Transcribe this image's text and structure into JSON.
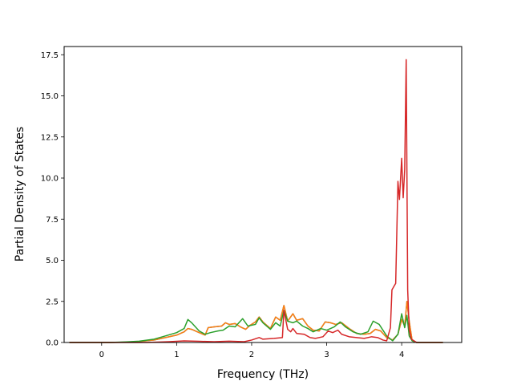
{
  "chart_data": {
    "type": "line",
    "title": "",
    "xlabel": "Frequency (THz)",
    "ylabel": "Partial Density of States",
    "xlim": [
      -0.5,
      4.8
    ],
    "ylim": [
      0,
      18
    ],
    "xticks": [
      0,
      1,
      2,
      3,
      4
    ],
    "yticks": [
      0.0,
      2.5,
      5.0,
      7.5,
      10.0,
      12.5,
      15.0,
      17.5
    ],
    "xtick_labels": [
      "0",
      "1",
      "2",
      "3",
      "4"
    ],
    "ytick_labels": [
      "0.0",
      "2.5",
      "5.0",
      "7.5",
      "10.0",
      "12.5",
      "15.0",
      "17.5"
    ],
    "grid": false,
    "series": [
      {
        "color": "#1f77b4",
        "points": [
          [
            -0.43,
            0
          ],
          [
            0.1,
            0
          ],
          [
            0.3,
            0.02
          ],
          [
            0.5,
            0.06
          ],
          [
            0.7,
            0.15
          ],
          [
            0.85,
            0.3
          ],
          [
            1.0,
            0.45
          ],
          [
            1.1,
            0.65
          ],
          [
            1.15,
            0.85
          ],
          [
            1.2,
            0.8
          ],
          [
            1.3,
            0.6
          ],
          [
            1.38,
            0.45
          ],
          [
            1.42,
            0.9
          ],
          [
            1.5,
            0.95
          ],
          [
            1.6,
            1.0
          ],
          [
            1.65,
            1.2
          ],
          [
            1.7,
            1.1
          ],
          [
            1.78,
            1.15
          ],
          [
            1.85,
            0.95
          ],
          [
            1.92,
            0.8
          ],
          [
            1.98,
            1.05
          ],
          [
            2.05,
            1.25
          ],
          [
            2.1,
            1.55
          ],
          [
            2.15,
            1.25
          ],
          [
            2.25,
            0.85
          ],
          [
            2.32,
            1.55
          ],
          [
            2.38,
            1.35
          ],
          [
            2.43,
            2.25
          ],
          [
            2.48,
            1.3
          ],
          [
            2.55,
            1.75
          ],
          [
            2.6,
            1.35
          ],
          [
            2.68,
            1.45
          ],
          [
            2.75,
            1.0
          ],
          [
            2.82,
            0.75
          ],
          [
            2.9,
            0.7
          ],
          [
            2.98,
            1.25
          ],
          [
            3.05,
            1.2
          ],
          [
            3.12,
            1.1
          ],
          [
            3.2,
            1.2
          ],
          [
            3.3,
            0.85
          ],
          [
            3.4,
            0.55
          ],
          [
            3.5,
            0.5
          ],
          [
            3.58,
            0.55
          ],
          [
            3.65,
            0.8
          ],
          [
            3.72,
            0.7
          ],
          [
            3.8,
            0.3
          ],
          [
            3.88,
            0.15
          ],
          [
            3.95,
            0.5
          ],
          [
            4.0,
            1.4
          ],
          [
            4.04,
            1.0
          ],
          [
            4.07,
            2.5
          ],
          [
            4.1,
            1.3
          ],
          [
            4.14,
            0.1
          ],
          [
            4.2,
            0
          ],
          [
            4.55,
            0
          ]
        ]
      },
      {
        "color": "#ff7f0e",
        "points": [
          [
            -0.43,
            0
          ],
          [
            0.1,
            0
          ],
          [
            0.3,
            0.02
          ],
          [
            0.5,
            0.06
          ],
          [
            0.7,
            0.15
          ],
          [
            0.85,
            0.3
          ],
          [
            1.0,
            0.45
          ],
          [
            1.1,
            0.65
          ],
          [
            1.15,
            0.85
          ],
          [
            1.2,
            0.8
          ],
          [
            1.3,
            0.6
          ],
          [
            1.38,
            0.45
          ],
          [
            1.42,
            0.9
          ],
          [
            1.5,
            0.95
          ],
          [
            1.6,
            1.0
          ],
          [
            1.65,
            1.2
          ],
          [
            1.7,
            1.1
          ],
          [
            1.78,
            1.15
          ],
          [
            1.85,
            0.95
          ],
          [
            1.92,
            0.8
          ],
          [
            1.98,
            1.05
          ],
          [
            2.05,
            1.25
          ],
          [
            2.1,
            1.55
          ],
          [
            2.15,
            1.25
          ],
          [
            2.25,
            0.85
          ],
          [
            2.32,
            1.55
          ],
          [
            2.38,
            1.35
          ],
          [
            2.43,
            2.25
          ],
          [
            2.48,
            1.3
          ],
          [
            2.55,
            1.75
          ],
          [
            2.6,
            1.35
          ],
          [
            2.68,
            1.45
          ],
          [
            2.75,
            1.0
          ],
          [
            2.82,
            0.75
          ],
          [
            2.9,
            0.7
          ],
          [
            2.98,
            1.25
          ],
          [
            3.05,
            1.2
          ],
          [
            3.12,
            1.1
          ],
          [
            3.2,
            1.2
          ],
          [
            3.3,
            0.85
          ],
          [
            3.4,
            0.55
          ],
          [
            3.5,
            0.5
          ],
          [
            3.58,
            0.55
          ],
          [
            3.65,
            0.8
          ],
          [
            3.72,
            0.7
          ],
          [
            3.8,
            0.3
          ],
          [
            3.88,
            0.15
          ],
          [
            3.95,
            0.5
          ],
          [
            4.0,
            1.4
          ],
          [
            4.04,
            1.0
          ],
          [
            4.07,
            2.5
          ],
          [
            4.1,
            1.3
          ],
          [
            4.14,
            0.1
          ],
          [
            4.2,
            0
          ],
          [
            4.55,
            0
          ]
        ]
      },
      {
        "color": "#2ca02c",
        "points": [
          [
            -0.43,
            0
          ],
          [
            0.1,
            0
          ],
          [
            0.3,
            0.03
          ],
          [
            0.5,
            0.08
          ],
          [
            0.7,
            0.2
          ],
          [
            0.85,
            0.4
          ],
          [
            1.0,
            0.6
          ],
          [
            1.1,
            0.85
          ],
          [
            1.15,
            1.4
          ],
          [
            1.2,
            1.2
          ],
          [
            1.3,
            0.7
          ],
          [
            1.38,
            0.5
          ],
          [
            1.45,
            0.6
          ],
          [
            1.55,
            0.7
          ],
          [
            1.62,
            0.75
          ],
          [
            1.7,
            1.0
          ],
          [
            1.78,
            0.95
          ],
          [
            1.88,
            1.45
          ],
          [
            1.95,
            1.0
          ],
          [
            2.05,
            1.1
          ],
          [
            2.1,
            1.5
          ],
          [
            2.15,
            1.2
          ],
          [
            2.25,
            0.8
          ],
          [
            2.32,
            1.2
          ],
          [
            2.38,
            1.0
          ],
          [
            2.43,
            1.95
          ],
          [
            2.48,
            1.3
          ],
          [
            2.55,
            1.2
          ],
          [
            2.6,
            1.3
          ],
          [
            2.68,
            1.0
          ],
          [
            2.75,
            0.85
          ],
          [
            2.82,
            0.65
          ],
          [
            2.92,
            0.85
          ],
          [
            3.0,
            0.75
          ],
          [
            3.1,
            0.95
          ],
          [
            3.18,
            1.25
          ],
          [
            3.25,
            0.95
          ],
          [
            3.35,
            0.65
          ],
          [
            3.45,
            0.5
          ],
          [
            3.55,
            0.65
          ],
          [
            3.62,
            1.3
          ],
          [
            3.7,
            1.1
          ],
          [
            3.8,
            0.4
          ],
          [
            3.88,
            0.1
          ],
          [
            3.95,
            0.5
          ],
          [
            4.0,
            1.75
          ],
          [
            4.04,
            0.9
          ],
          [
            4.07,
            1.65
          ],
          [
            4.1,
            0.4
          ],
          [
            4.14,
            0.1
          ],
          [
            4.2,
            0
          ],
          [
            4.55,
            0
          ]
        ]
      },
      {
        "color": "#d62728",
        "points": [
          [
            -0.43,
            0
          ],
          [
            0.6,
            0
          ],
          [
            0.9,
            0.05
          ],
          [
            1.1,
            0.1
          ],
          [
            1.3,
            0.07
          ],
          [
            1.5,
            0.05
          ],
          [
            1.7,
            0.08
          ],
          [
            1.9,
            0.05
          ],
          [
            2.0,
            0.15
          ],
          [
            2.1,
            0.3
          ],
          [
            2.15,
            0.2
          ],
          [
            2.3,
            0.25
          ],
          [
            2.41,
            0.3
          ],
          [
            2.43,
            1.95
          ],
          [
            2.48,
            0.8
          ],
          [
            2.52,
            0.65
          ],
          [
            2.55,
            0.85
          ],
          [
            2.6,
            0.55
          ],
          [
            2.7,
            0.5
          ],
          [
            2.78,
            0.3
          ],
          [
            2.85,
            0.25
          ],
          [
            2.95,
            0.35
          ],
          [
            3.02,
            0.7
          ],
          [
            3.08,
            0.6
          ],
          [
            3.15,
            0.75
          ],
          [
            3.2,
            0.5
          ],
          [
            3.3,
            0.35
          ],
          [
            3.4,
            0.3
          ],
          [
            3.5,
            0.25
          ],
          [
            3.6,
            0.35
          ],
          [
            3.68,
            0.3
          ],
          [
            3.75,
            0.15
          ],
          [
            3.8,
            0.1
          ],
          [
            3.85,
            0.9
          ],
          [
            3.87,
            3.2
          ],
          [
            3.92,
            3.6
          ],
          [
            3.95,
            9.8
          ],
          [
            3.97,
            8.7
          ],
          [
            4.0,
            11.2
          ],
          [
            4.02,
            8.8
          ],
          [
            4.04,
            10.5
          ],
          [
            4.06,
            17.2
          ],
          [
            4.08,
            3.2
          ],
          [
            4.1,
            0.8
          ],
          [
            4.13,
            0.2
          ],
          [
            4.2,
            0
          ],
          [
            4.55,
            0
          ]
        ]
      }
    ]
  }
}
